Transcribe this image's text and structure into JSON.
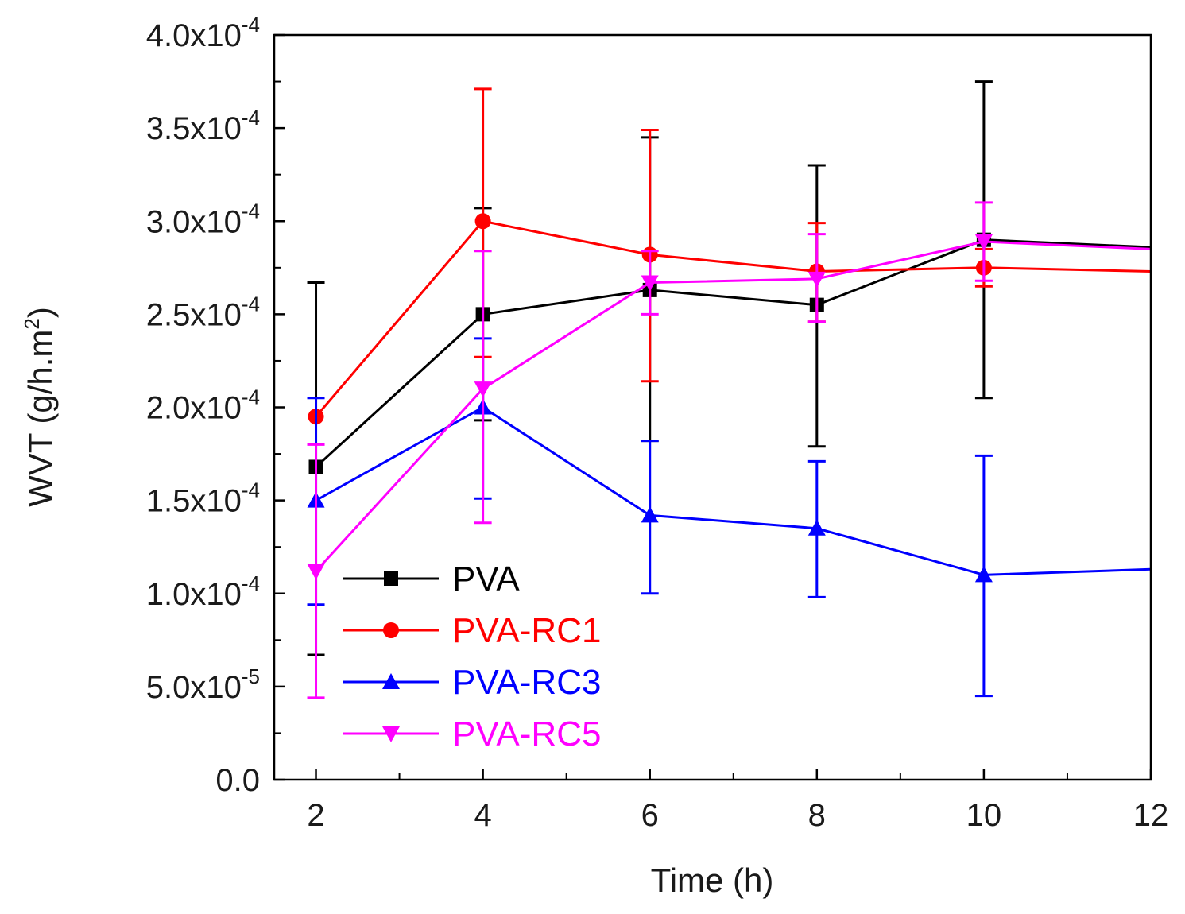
{
  "chart_data": {
    "type": "line",
    "title": "",
    "xlabel": "Time (h)",
    "ylabel": "WVT (g/h.m²)",
    "ylabel_parts": {
      "main": "WVT (g/h.m",
      "sup": "2",
      "close": ")"
    },
    "xlim": [
      1.5,
      12
    ],
    "ylim": [
      0,
      0.0004
    ],
    "x_ticks": [
      2,
      4,
      6,
      8,
      10,
      12
    ],
    "x_tick_labels": [
      "2",
      "4",
      "6",
      "8",
      "10",
      "12"
    ],
    "y_ticks": [
      0,
      5e-05,
      0.0001,
      0.00015,
      0.0002,
      0.00025,
      0.0003,
      0.00035,
      0.0004
    ],
    "y_tick_labels": [
      {
        "mantissa": "0.0",
        "exp": ""
      },
      {
        "mantissa": "5.0x10",
        "exp": "-5"
      },
      {
        "mantissa": "1.0x10",
        "exp": "-4"
      },
      {
        "mantissa": "1.5x10",
        "exp": "-4"
      },
      {
        "mantissa": "2.0x10",
        "exp": "-4"
      },
      {
        "mantissa": "2.5x10",
        "exp": "-4"
      },
      {
        "mantissa": "3.0x10",
        "exp": "-4"
      },
      {
        "mantissa": "3.5x10",
        "exp": "-4"
      },
      {
        "mantissa": "4.0x10",
        "exp": "-4"
      }
    ],
    "legend_position": "bottom-left",
    "series": [
      {
        "name": "PVA",
        "color": "#000000",
        "marker": "square",
        "x": [
          2,
          4,
          6,
          8,
          10,
          12
        ],
        "y": [
          0.000168,
          0.00025,
          0.000263,
          0.000255,
          0.00029,
          0.000286
        ],
        "err_low": [
          6.7e-05,
          0.000193,
          0.000182,
          0.000179,
          0.000205,
          null
        ],
        "err_high": [
          0.000267,
          0.000307,
          0.000345,
          0.00033,
          0.000375,
          null
        ],
        "marker_at": [
          true,
          true,
          true,
          true,
          true,
          false
        ]
      },
      {
        "name": "PVA-RC1",
        "color": "#ff0000",
        "marker": "circle",
        "x": [
          2,
          4,
          6,
          8,
          10,
          12
        ],
        "y": [
          0.000195,
          0.0003,
          0.000282,
          0.000273,
          0.000275,
          0.000273
        ],
        "err_low": [
          null,
          0.000227,
          0.000214,
          0.000246,
          0.000265,
          null
        ],
        "err_high": [
          null,
          0.000371,
          0.000349,
          0.000299,
          0.000285,
          null
        ],
        "marker_at": [
          true,
          true,
          true,
          true,
          true,
          false
        ]
      },
      {
        "name": "PVA-RC3",
        "color": "#0000ff",
        "marker": "triangle-up",
        "x": [
          2,
          4,
          6,
          8,
          10,
          12
        ],
        "y": [
          0.00015,
          0.0002,
          0.000142,
          0.000135,
          0.00011,
          0.000113
        ],
        "err_low": [
          9.4e-05,
          0.000151,
          0.0001,
          9.8e-05,
          4.5e-05,
          null
        ],
        "err_high": [
          0.000205,
          0.000237,
          0.000182,
          0.000171,
          0.000174,
          null
        ],
        "marker_at": [
          true,
          true,
          true,
          true,
          true,
          false
        ]
      },
      {
        "name": "PVA-RC5",
        "color": "#ff00ff",
        "marker": "triangle-down",
        "x": [
          2,
          4,
          6,
          8,
          10,
          12
        ],
        "y": [
          0.000112,
          0.00021,
          0.000267,
          0.000269,
          0.000289,
          0.000285
        ],
        "err_low": [
          4.4e-05,
          0.000138,
          0.00025,
          0.000246,
          0.000268,
          null
        ],
        "err_high": [
          0.00018,
          0.000284,
          0.000284,
          0.000293,
          0.00031,
          null
        ],
        "marker_at": [
          true,
          true,
          true,
          true,
          true,
          false
        ]
      }
    ]
  }
}
